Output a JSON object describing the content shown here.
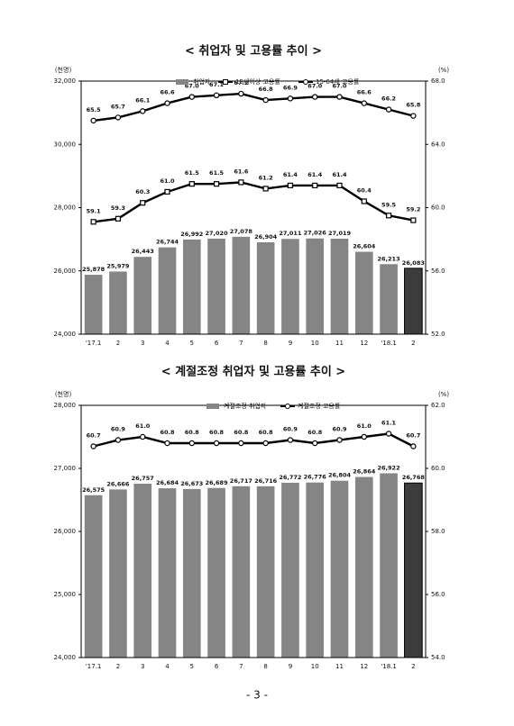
{
  "chart_data": [
    {
      "type": "bar-line",
      "title": "< 취업자 및 고용률 추이 >",
      "y_label": "(천명)",
      "y2_label": "(%)",
      "categories": [
        "'17.1",
        "2",
        "3",
        "4",
        "5",
        "6",
        "7",
        "8",
        "9",
        "10",
        "11",
        "12",
        "'18.1",
        "2"
      ],
      "series": [
        {
          "name": "취업자",
          "type": "bar",
          "color": "#858585",
          "last_color": "#3c3c3c",
          "values": [
            25878,
            25979,
            26443,
            26744,
            26992,
            27020,
            27078,
            26904,
            27011,
            27026,
            27019,
            26604,
            26213,
            26083
          ],
          "value_labels": [
            "25,878",
            "25,979",
            "26,443",
            "26,744",
            "26,992",
            "27,020",
            "27,078",
            "26,904",
            "27,011",
            "27,026",
            "27,019",
            "26,604",
            "26,213",
            "26,083"
          ]
        },
        {
          "name": "15세이상 고용률",
          "type": "line",
          "axis": "y2",
          "color": "#000000",
          "marker": "square",
          "values": [
            59.1,
            59.3,
            60.3,
            61.0,
            61.5,
            61.5,
            61.6,
            61.2,
            61.4,
            61.4,
            61.4,
            60.4,
            59.5,
            59.2
          ],
          "value_labels": [
            "59.1",
            "59.3",
            "60.3",
            "61.0",
            "61.5",
            "61.5",
            "61.6",
            "61.2",
            "61.4",
            "61.4",
            "61.4",
            "60.4",
            "59.5",
            "59.2"
          ]
        },
        {
          "name": "15-64세 고용률",
          "type": "line",
          "axis": "y2",
          "color": "#000000",
          "marker": "circle",
          "values": [
            65.5,
            65.7,
            66.1,
            66.6,
            67.0,
            67.1,
            67.2,
            66.8,
            66.9,
            67.0,
            67.0,
            66.6,
            66.2,
            65.8
          ],
          "value_labels": [
            "65.5",
            "65.7",
            "66.1",
            "66.6",
            "67.0",
            "67.1",
            "67.2",
            "66.8",
            "66.9",
            "67.0",
            "67.0",
            "66.6",
            "66.2",
            "65.8"
          ]
        }
      ],
      "ylim": [
        24000,
        32000
      ],
      "yticks": [
        {
          "value": 24000,
          "label": "24,000"
        },
        {
          "value": 26000,
          "label": "26,000"
        },
        {
          "value": 28000,
          "label": "28,000"
        },
        {
          "value": 30000,
          "label": "30,000"
        },
        {
          "value": 32000,
          "label": "32,000"
        }
      ],
      "y2lim": [
        52,
        68
      ],
      "y2ticks": [
        {
          "value": 52,
          "label": "52.0"
        },
        {
          "value": 56,
          "label": "56.0"
        },
        {
          "value": 60,
          "label": "60.0"
        },
        {
          "value": 64,
          "label": "64.0"
        },
        {
          "value": 68,
          "label": "68.0"
        }
      ],
      "grid": false
    },
    {
      "type": "bar-line",
      "title": "< 계절조정 취업자 및 고용률 추이 >",
      "y_label": "(천명)",
      "y2_label": "(%)",
      "categories": [
        "'17.1",
        "2",
        "3",
        "4",
        "5",
        "6",
        "7",
        "8",
        "9",
        "10",
        "11",
        "12",
        "'18.1",
        "2"
      ],
      "series": [
        {
          "name": "계절조정 취업자",
          "type": "bar",
          "color": "#858585",
          "last_color": "#3c3c3c",
          "values": [
            26575,
            26666,
            26757,
            26684,
            26673,
            26689,
            26717,
            26716,
            26772,
            26776,
            26804,
            26864,
            26922,
            26768
          ],
          "value_labels": [
            "26,575",
            "26,666",
            "26,757",
            "26,684",
            "26,673",
            "26,689",
            "26,717",
            "26,716",
            "26,772",
            "26,776",
            "26,804",
            "26,864",
            "26,922",
            "26,768"
          ]
        },
        {
          "name": "계절조정 고용률",
          "type": "line",
          "axis": "y2",
          "color": "#000000",
          "marker": "circle",
          "values": [
            60.7,
            60.9,
            61.0,
            60.8,
            60.8,
            60.8,
            60.8,
            60.8,
            60.9,
            60.8,
            60.9,
            61.0,
            61.1,
            60.7
          ],
          "value_labels": [
            "60.7",
            "60.9",
            "61.0",
            "60.8",
            "60.8",
            "60.8",
            "60.8",
            "60.8",
            "60.9",
            "60.8",
            "60.9",
            "61.0",
            "61.1",
            "60.7"
          ]
        }
      ],
      "ylim": [
        24000,
        28000
      ],
      "yticks": [
        {
          "value": 24000,
          "label": "24,000"
        },
        {
          "value": 25000,
          "label": "25,000"
        },
        {
          "value": 26000,
          "label": "26,000"
        },
        {
          "value": 27000,
          "label": "27,000"
        },
        {
          "value": 28000,
          "label": "28,000"
        }
      ],
      "y2lim": [
        54,
        62
      ],
      "y2ticks": [
        {
          "value": 54,
          "label": "54.0"
        },
        {
          "value": 56,
          "label": "56.0"
        },
        {
          "value": 58,
          "label": "58.0"
        },
        {
          "value": 60,
          "label": "60.0"
        },
        {
          "value": 62,
          "label": "62.0"
        }
      ],
      "grid": false
    }
  ],
  "page_number": "- 3 -"
}
